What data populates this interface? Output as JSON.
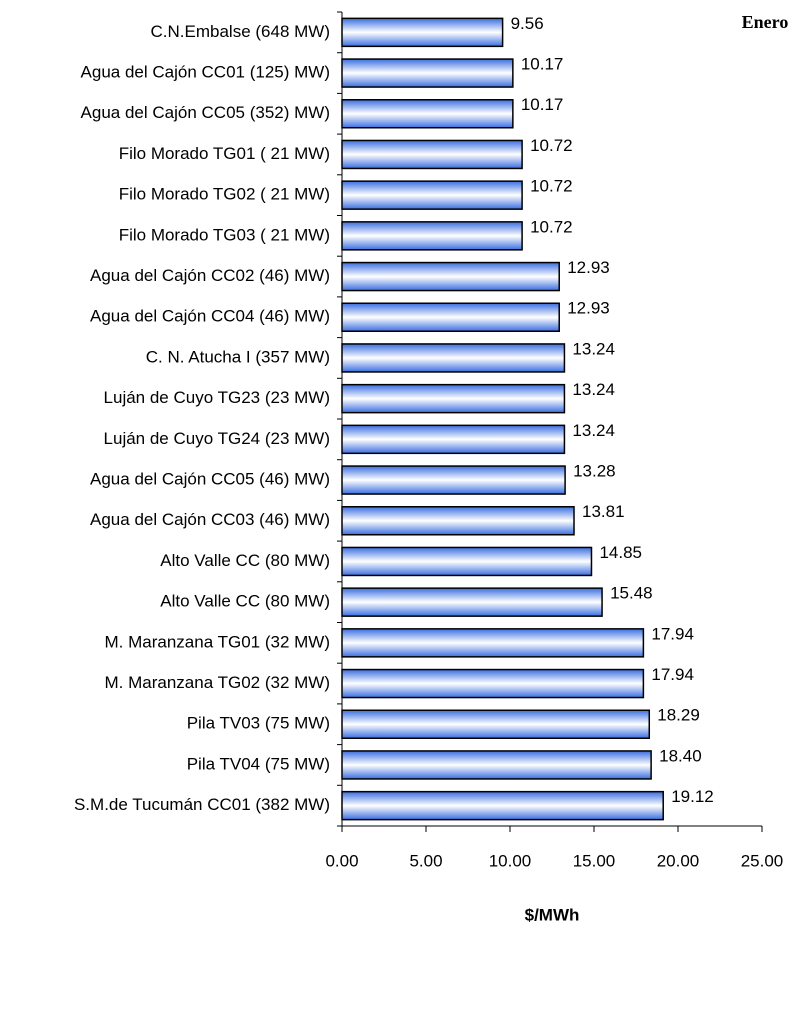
{
  "chart_data": {
    "type": "barh",
    "title": "Enero",
    "xlabel": "$/MWh",
    "categories": [
      "C.N.Embalse (648 MW)",
      "Agua del Cajón CC01 (125) MW)",
      "Agua del Cajón CC05 (352) MW)",
      "Filo Morado TG01 ( 21 MW)",
      "Filo Morado TG02 ( 21 MW)",
      "Filo Morado TG03 ( 21 MW)",
      "Agua del Cajón CC02 (46) MW)",
      "Agua del Cajón CC04 (46) MW)",
      "C. N. Atucha I (357 MW)",
      "Luján de Cuyo TG23 (23 MW)",
      "Luján de Cuyo TG24 (23 MW)",
      "Agua del Cajón CC05 (46) MW)",
      "Agua del Cajón CC03 (46) MW)",
      "Alto Valle CC (80 MW)",
      "Alto Valle CC (80 MW)",
      "M. Maranzana TG01 (32 MW)",
      "M. Maranzana TG02 (32 MW)",
      "Pila TV03 (75 MW)",
      "Pila TV04 (75 MW)",
      "S.M.de Tucumán CC01 (382 MW)"
    ],
    "values": [
      9.56,
      10.17,
      10.17,
      10.72,
      10.72,
      10.72,
      12.93,
      12.93,
      13.24,
      13.24,
      13.24,
      13.28,
      13.81,
      14.85,
      15.48,
      17.94,
      17.94,
      18.29,
      18.4,
      19.12
    ],
    "value_labels": [
      "9.56",
      "10.17",
      "10.17",
      "10.72",
      "10.72",
      "10.72",
      "12.93",
      "12.93",
      "13.24",
      "13.24",
      "13.24",
      "13.28",
      "13.81",
      "14.85",
      "15.48",
      "17.94",
      "17.94",
      "18.29",
      "18.40",
      "19.12"
    ],
    "color": "#3a6ee0",
    "xlim": [
      0,
      25
    ],
    "xticks": [
      {
        "value": 0,
        "label": "0.00"
      },
      {
        "value": 5,
        "label": "5.00"
      },
      {
        "value": 10,
        "label": "10.00"
      },
      {
        "value": 15,
        "label": "15.00"
      },
      {
        "value": 20,
        "label": "20.00"
      },
      {
        "value": 25,
        "label": "25.00"
      }
    ]
  }
}
